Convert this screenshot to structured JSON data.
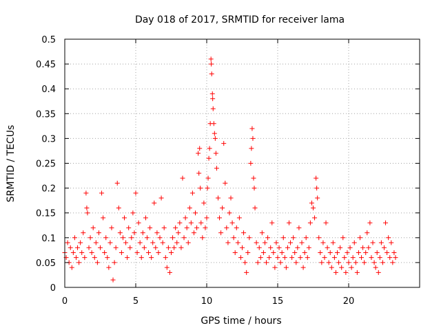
{
  "chart_data": {
    "type": "scatter",
    "title": "Day 018 of 2017, SRMTID for receiver lama",
    "xlabel": "GPS time / hours",
    "ylabel": "SRMTID / TECUs",
    "xlim": [
      0,
      25
    ],
    "ylim": [
      0,
      0.5
    ],
    "xticks": [
      0,
      5,
      10,
      15,
      20
    ],
    "xtick_labels": [
      "0",
      "5",
      "10",
      "15",
      "20"
    ],
    "yticks": [
      0,
      0.05,
      0.1,
      0.15,
      0.2,
      0.25,
      0.3,
      0.35,
      0.4,
      0.45,
      0.5
    ],
    "ytick_labels": [
      "0",
      "0.05",
      "0.1",
      "0.15",
      "0.2",
      "0.25",
      "0.3",
      "0.35",
      "0.4",
      "0.45",
      "0.5"
    ],
    "grid": true,
    "marker": "+",
    "series": [
      {
        "name": "SRMTID",
        "color": "#ff0000",
        "points": [
          [
            0.0,
            0.07
          ],
          [
            0.1,
            0.06
          ],
          [
            0.2,
            0.09
          ],
          [
            0.3,
            0.05
          ],
          [
            0.4,
            0.08
          ],
          [
            0.5,
            0.04
          ],
          [
            0.6,
            0.07
          ],
          [
            0.7,
            0.1
          ],
          [
            0.8,
            0.06
          ],
          [
            0.9,
            0.08
          ],
          [
            1.0,
            0.05
          ],
          [
            1.1,
            0.09
          ],
          [
            1.2,
            0.07
          ],
          [
            1.3,
            0.11
          ],
          [
            1.4,
            0.06
          ],
          [
            1.5,
            0.19
          ],
          [
            1.55,
            0.16
          ],
          [
            1.6,
            0.15
          ],
          [
            1.7,
            0.08
          ],
          [
            1.8,
            0.1
          ],
          [
            1.9,
            0.07
          ],
          [
            2.0,
            0.12
          ],
          [
            2.1,
            0.06
          ],
          [
            2.2,
            0.09
          ],
          [
            2.3,
            0.05
          ],
          [
            2.4,
            0.11
          ],
          [
            2.5,
            0.08
          ],
          [
            2.6,
            0.19
          ],
          [
            2.7,
            0.14
          ],
          [
            2.8,
            0.07
          ],
          [
            2.9,
            0.1
          ],
          [
            3.0,
            0.06
          ],
          [
            3.1,
            0.04
          ],
          [
            3.2,
            0.09
          ],
          [
            3.3,
            0.12
          ],
          [
            3.4,
            0.015
          ],
          [
            3.5,
            0.05
          ],
          [
            3.6,
            0.08
          ],
          [
            3.7,
            0.21
          ],
          [
            3.8,
            0.16
          ],
          [
            3.9,
            0.11
          ],
          [
            4.0,
            0.07
          ],
          [
            4.1,
            0.1
          ],
          [
            4.2,
            0.14
          ],
          [
            4.3,
            0.09
          ],
          [
            4.4,
            0.06
          ],
          [
            4.5,
            0.12
          ],
          [
            4.6,
            0.08
          ],
          [
            4.7,
            0.1
          ],
          [
            4.8,
            0.15
          ],
          [
            4.9,
            0.11
          ],
          [
            5.0,
            0.19
          ],
          [
            5.1,
            0.07
          ],
          [
            5.2,
            0.13
          ],
          [
            5.3,
            0.09
          ],
          [
            5.4,
            0.06
          ],
          [
            5.5,
            0.11
          ],
          [
            5.6,
            0.08
          ],
          [
            5.7,
            0.14
          ],
          [
            5.8,
            0.1
          ],
          [
            5.9,
            0.07
          ],
          [
            6.0,
            0.12
          ],
          [
            6.1,
            0.06
          ],
          [
            6.2,
            0.09
          ],
          [
            6.3,
            0.17
          ],
          [
            6.4,
            0.08
          ],
          [
            6.5,
            0.11
          ],
          [
            6.6,
            0.07
          ],
          [
            6.7,
            0.1
          ],
          [
            6.8,
            0.18
          ],
          [
            6.9,
            0.09
          ],
          [
            7.0,
            0.12
          ],
          [
            7.1,
            0.06
          ],
          [
            7.2,
            0.04
          ],
          [
            7.3,
            0.08
          ],
          [
            7.4,
            0.03
          ],
          [
            7.5,
            0.07
          ],
          [
            7.6,
            0.1
          ],
          [
            7.7,
            0.08
          ],
          [
            7.8,
            0.12
          ],
          [
            7.9,
            0.09
          ],
          [
            8.0,
            0.11
          ],
          [
            8.1,
            0.13
          ],
          [
            8.2,
            0.08
          ],
          [
            8.3,
            0.22
          ],
          [
            8.4,
            0.1
          ],
          [
            8.5,
            0.14
          ],
          [
            8.6,
            0.12
          ],
          [
            8.7,
            0.09
          ],
          [
            8.8,
            0.16
          ],
          [
            8.9,
            0.13
          ],
          [
            9.0,
            0.19
          ],
          [
            9.1,
            0.11
          ],
          [
            9.2,
            0.15
          ],
          [
            9.3,
            0.12
          ],
          [
            9.4,
            0.27
          ],
          [
            9.45,
            0.23
          ],
          [
            9.5,
            0.28
          ],
          [
            9.55,
            0.2
          ],
          [
            9.6,
            0.13
          ],
          [
            9.7,
            0.1
          ],
          [
            9.8,
            0.17
          ],
          [
            9.9,
            0.12
          ],
          [
            10.0,
            0.14
          ],
          [
            10.05,
            0.2
          ],
          [
            10.1,
            0.22
          ],
          [
            10.15,
            0.26
          ],
          [
            10.2,
            0.28
          ],
          [
            10.25,
            0.33
          ],
          [
            10.3,
            0.46
          ],
          [
            10.32,
            0.45
          ],
          [
            10.35,
            0.43
          ],
          [
            10.4,
            0.39
          ],
          [
            10.42,
            0.38
          ],
          [
            10.45,
            0.36
          ],
          [
            10.5,
            0.33
          ],
          [
            10.55,
            0.31
          ],
          [
            10.6,
            0.3
          ],
          [
            10.65,
            0.27
          ],
          [
            10.7,
            0.24
          ],
          [
            10.8,
            0.18
          ],
          [
            10.9,
            0.14
          ],
          [
            11.0,
            0.11
          ],
          [
            11.1,
            0.16
          ],
          [
            11.2,
            0.29
          ],
          [
            11.3,
            0.21
          ],
          [
            11.4,
            0.12
          ],
          [
            11.5,
            0.09
          ],
          [
            11.6,
            0.15
          ],
          [
            11.7,
            0.18
          ],
          [
            11.8,
            0.13
          ],
          [
            11.9,
            0.1
          ],
          [
            12.0,
            0.07
          ],
          [
            12.1,
            0.12
          ],
          [
            12.2,
            0.09
          ],
          [
            12.3,
            0.14
          ],
          [
            12.4,
            0.06
          ],
          [
            12.5,
            0.08
          ],
          [
            12.6,
            0.11
          ],
          [
            12.7,
            0.05
          ],
          [
            12.8,
            0.03
          ],
          [
            12.9,
            0.07
          ],
          [
            13.0,
            0.1
          ],
          [
            13.1,
            0.25
          ],
          [
            13.15,
            0.28
          ],
          [
            13.2,
            0.32
          ],
          [
            13.25,
            0.3
          ],
          [
            13.3,
            0.22
          ],
          [
            13.35,
            0.2
          ],
          [
            13.4,
            0.16
          ],
          [
            13.5,
            0.09
          ],
          [
            13.6,
            0.05
          ],
          [
            13.7,
            0.08
          ],
          [
            13.8,
            0.06
          ],
          [
            13.9,
            0.11
          ],
          [
            14.0,
            0.07
          ],
          [
            14.1,
            0.09
          ],
          [
            14.2,
            0.05
          ],
          [
            14.3,
            0.1
          ],
          [
            14.4,
            0.06
          ],
          [
            14.5,
            0.08
          ],
          [
            14.6,
            0.13
          ],
          [
            14.7,
            0.07
          ],
          [
            14.8,
            0.04
          ],
          [
            14.9,
            0.09
          ],
          [
            15.0,
            0.06
          ],
          [
            15.1,
            0.08
          ],
          [
            15.2,
            0.05
          ],
          [
            15.3,
            0.07
          ],
          [
            15.4,
            0.1
          ],
          [
            15.5,
            0.06
          ],
          [
            15.6,
            0.04
          ],
          [
            15.7,
            0.08
          ],
          [
            15.8,
            0.13
          ],
          [
            15.9,
            0.09
          ],
          [
            16.0,
            0.06
          ],
          [
            16.1,
            0.1
          ],
          [
            16.2,
            0.07
          ],
          [
            16.3,
            0.05
          ],
          [
            16.4,
            0.08
          ],
          [
            16.5,
            0.12
          ],
          [
            16.6,
            0.06
          ],
          [
            16.7,
            0.09
          ],
          [
            16.8,
            0.04
          ],
          [
            16.9,
            0.07
          ],
          [
            17.0,
            0.1
          ],
          [
            17.1,
            0.06
          ],
          [
            17.2,
            0.08
          ],
          [
            17.3,
            0.13
          ],
          [
            17.4,
            0.17
          ],
          [
            17.5,
            0.16
          ],
          [
            17.6,
            0.14
          ],
          [
            17.7,
            0.22
          ],
          [
            17.75,
            0.2
          ],
          [
            17.8,
            0.18
          ],
          [
            17.9,
            0.1
          ],
          [
            18.0,
            0.07
          ],
          [
            18.1,
            0.05
          ],
          [
            18.2,
            0.09
          ],
          [
            18.3,
            0.06
          ],
          [
            18.4,
            0.13
          ],
          [
            18.5,
            0.08
          ],
          [
            18.6,
            0.05
          ],
          [
            18.7,
            0.07
          ],
          [
            18.8,
            0.04
          ],
          [
            18.9,
            0.09
          ],
          [
            19.0,
            0.06
          ],
          [
            19.1,
            0.03
          ],
          [
            19.2,
            0.07
          ],
          [
            19.3,
            0.05
          ],
          [
            19.4,
            0.08
          ],
          [
            19.5,
            0.04
          ],
          [
            19.6,
            0.1
          ],
          [
            19.7,
            0.06
          ],
          [
            19.8,
            0.03
          ],
          [
            19.9,
            0.07
          ],
          [
            20.0,
            0.05
          ],
          [
            20.1,
            0.08
          ],
          [
            20.2,
            0.04
          ],
          [
            20.3,
            0.06
          ],
          [
            20.4,
            0.09
          ],
          [
            20.5,
            0.05
          ],
          [
            20.6,
            0.03
          ],
          [
            20.7,
            0.07
          ],
          [
            20.8,
            0.1
          ],
          [
            20.9,
            0.06
          ],
          [
            21.0,
            0.08
          ],
          [
            21.1,
            0.05
          ],
          [
            21.2,
            0.07
          ],
          [
            21.3,
            0.11
          ],
          [
            21.4,
            0.08
          ],
          [
            21.5,
            0.13
          ],
          [
            21.6,
            0.06
          ],
          [
            21.7,
            0.09
          ],
          [
            21.8,
            0.05
          ],
          [
            21.9,
            0.04
          ],
          [
            22.0,
            0.07
          ],
          [
            22.1,
            0.03
          ],
          [
            22.2,
            0.06
          ],
          [
            22.3,
            0.09
          ],
          [
            22.4,
            0.05
          ],
          [
            22.5,
            0.08
          ],
          [
            22.6,
            0.13
          ],
          [
            22.7,
            0.07
          ],
          [
            22.8,
            0.1
          ],
          [
            22.9,
            0.06
          ],
          [
            23.0,
            0.09
          ],
          [
            23.1,
            0.05
          ],
          [
            23.2,
            0.07
          ],
          [
            23.3,
            0.06
          ]
        ]
      }
    ]
  }
}
